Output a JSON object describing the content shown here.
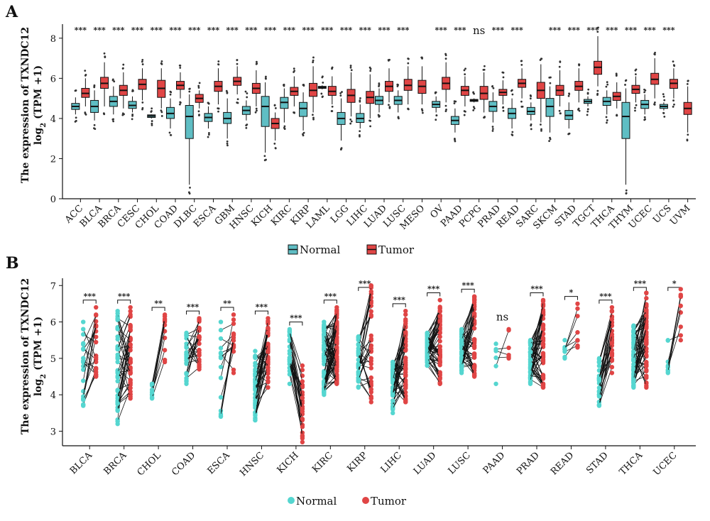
{
  "colors": {
    "normal_box": "#5fbec4",
    "normal_point": "#55d6d0",
    "tumor": "#e04545",
    "line": "#111111"
  },
  "panel_a": {
    "letter": "A",
    "ylabel_line1": "The expression of TXNDC12",
    "ylabel_line2": "log",
    "ylabel_sub": "2",
    "ylabel_rest": " (TPM +1)",
    "legend": {
      "normal": "Normal",
      "tumor": "Tumor"
    },
    "chart_data": {
      "type": "box",
      "ylim": [
        0,
        8.7
      ],
      "yticks": [
        0,
        2,
        4,
        6,
        8
      ],
      "series": [
        "Normal",
        "Tumor"
      ],
      "categories": [
        {
          "name": "ACC",
          "sig": "***",
          "normal": {
            "q1": 4.45,
            "med": 4.6,
            "q3": 4.75,
            "lo": 4.2,
            "hi": 5.05
          },
          "tumor": {
            "q1": 5.05,
            "med": 5.25,
            "q3": 5.5,
            "lo": 4.6,
            "hi": 6.0
          }
        },
        {
          "name": "BLCA",
          "sig": "***",
          "normal": {
            "q1": 4.3,
            "med": 4.6,
            "q3": 4.9,
            "lo": 3.9,
            "hi": 5.4
          },
          "tumor": {
            "q1": 5.5,
            "med": 5.75,
            "q3": 6.05,
            "lo": 4.6,
            "hi": 6.8
          }
        },
        {
          "name": "BRCA",
          "sig": "***",
          "normal": {
            "q1": 4.6,
            "med": 4.85,
            "q3": 5.1,
            "lo": 4.2,
            "hi": 5.6
          },
          "tumor": {
            "q1": 5.15,
            "med": 5.4,
            "q3": 5.65,
            "lo": 4.5,
            "hi": 6.3
          }
        },
        {
          "name": "CESC",
          "sig": "***",
          "normal": {
            "q1": 4.5,
            "med": 4.65,
            "q3": 4.85,
            "lo": 4.3,
            "hi": 5.1
          },
          "tumor": {
            "q1": 5.45,
            "med": 5.7,
            "q3": 5.95,
            "lo": 4.9,
            "hi": 6.5
          }
        },
        {
          "name": "CHOL",
          "sig": "***",
          "normal": {
            "q1": 4.05,
            "med": 4.12,
            "q3": 4.18,
            "lo": 4.0,
            "hi": 4.2
          },
          "tumor": {
            "q1": 5.05,
            "med": 5.5,
            "q3": 5.9,
            "lo": 4.5,
            "hi": 6.5
          }
        },
        {
          "name": "COAD",
          "sig": "***",
          "normal": {
            "q1": 4.0,
            "med": 4.25,
            "q3": 4.55,
            "lo": 3.5,
            "hi": 5.0
          },
          "tumor": {
            "q1": 5.45,
            "med": 5.65,
            "q3": 5.85,
            "lo": 5.0,
            "hi": 6.3
          }
        },
        {
          "name": "DLBC",
          "sig": "***",
          "normal": {
            "q1": 3.0,
            "med": 4.1,
            "q3": 4.65,
            "lo": 0.7,
            "hi": 5.2
          },
          "tumor": {
            "q1": 4.8,
            "med": 5.0,
            "q3": 5.2,
            "lo": 4.5,
            "hi": 5.4
          }
        },
        {
          "name": "ESCA",
          "sig": "***",
          "normal": {
            "q1": 3.85,
            "med": 4.05,
            "q3": 4.25,
            "lo": 3.5,
            "hi": 4.6
          },
          "tumor": {
            "q1": 5.35,
            "med": 5.6,
            "q3": 5.85,
            "lo": 4.7,
            "hi": 6.5
          }
        },
        {
          "name": "GBM",
          "sig": "***",
          "normal": {
            "q1": 3.75,
            "med": 4.0,
            "q3": 4.3,
            "lo": 3.0,
            "hi": 5.0
          },
          "tumor": {
            "q1": 5.65,
            "med": 5.85,
            "q3": 6.05,
            "lo": 5.2,
            "hi": 6.6
          }
        },
        {
          "name": "HNSC",
          "sig": "***",
          "normal": {
            "q1": 4.2,
            "med": 4.4,
            "q3": 4.6,
            "lo": 3.9,
            "hi": 4.9
          },
          "tumor": {
            "q1": 5.25,
            "med": 5.5,
            "q3": 5.75,
            "lo": 4.6,
            "hi": 6.4
          }
        },
        {
          "name": "KICH",
          "sig": "***",
          "normal": {
            "q1": 3.6,
            "med": 4.6,
            "q3": 5.1,
            "lo": 2.3,
            "hi": 5.8
          },
          "tumor": {
            "q1": 3.5,
            "med": 3.75,
            "q3": 4.0,
            "lo": 2.9,
            "hi": 4.3
          }
        },
        {
          "name": "KIRC",
          "sig": "***",
          "normal": {
            "q1": 4.5,
            "med": 4.8,
            "q3": 5.05,
            "lo": 3.8,
            "hi": 5.5
          },
          "tumor": {
            "q1": 5.15,
            "med": 5.35,
            "q3": 5.55,
            "lo": 4.6,
            "hi": 6.1
          }
        },
        {
          "name": "KIRP",
          "sig": "***",
          "normal": {
            "q1": 4.1,
            "med": 4.5,
            "q3": 4.8,
            "lo": 3.4,
            "hi": 5.3
          },
          "tumor": {
            "q1": 5.1,
            "med": 5.4,
            "q3": 5.75,
            "lo": 4.3,
            "hi": 6.6
          }
        },
        {
          "name": "LAML",
          "sig": "***",
          "normal": {
            "q1": 5.5,
            "med": 5.55,
            "q3": 5.6,
            "lo": 5.45,
            "hi": 5.65
          },
          "tumor": {
            "q1": 5.15,
            "med": 5.35,
            "q3": 5.6,
            "lo": 4.7,
            "hi": 6.1
          }
        },
        {
          "name": "LGG",
          "sig": "***",
          "normal": {
            "q1": 3.7,
            "med": 4.0,
            "q3": 4.3,
            "lo": 2.9,
            "hi": 5.0
          },
          "tumor": {
            "q1": 4.8,
            "med": 5.15,
            "q3": 5.45,
            "lo": 4.1,
            "hi": 6.3
          }
        },
        {
          "name": "LIHC",
          "sig": "***",
          "normal": {
            "q1": 3.8,
            "med": 4.0,
            "q3": 4.25,
            "lo": 3.5,
            "hi": 4.7
          },
          "tumor": {
            "q1": 4.75,
            "med": 5.05,
            "q3": 5.35,
            "lo": 4.0,
            "hi": 6.2
          }
        },
        {
          "name": "LUAD",
          "sig": "***",
          "normal": {
            "q1": 4.7,
            "med": 4.9,
            "q3": 5.1,
            "lo": 4.3,
            "hi": 5.5
          },
          "tumor": {
            "q1": 5.35,
            "med": 5.6,
            "q3": 5.85,
            "lo": 4.8,
            "hi": 6.5
          }
        },
        {
          "name": "LUSC",
          "sig": "***",
          "normal": {
            "q1": 4.7,
            "med": 4.9,
            "q3": 5.1,
            "lo": 4.3,
            "hi": 5.4
          },
          "tumor": {
            "q1": 5.4,
            "med": 5.65,
            "q3": 5.95,
            "lo": 4.7,
            "hi": 6.6
          }
        },
        {
          "name": "MESO",
          "sig": "",
          "normal": null,
          "tumor": {
            "q1": 5.25,
            "med": 5.6,
            "q3": 5.9,
            "lo": 4.7,
            "hi": 6.6
          }
        },
        {
          "name": "OV",
          "sig": "***",
          "normal": {
            "q1": 4.55,
            "med": 4.7,
            "q3": 4.85,
            "lo": 4.3,
            "hi": 5.1
          },
          "tumor": {
            "q1": 5.45,
            "med": 5.75,
            "q3": 6.05,
            "lo": 4.8,
            "hi": 6.8
          }
        },
        {
          "name": "PAAD",
          "sig": "***",
          "normal": {
            "q1": 3.7,
            "med": 3.9,
            "q3": 4.1,
            "lo": 3.3,
            "hi": 4.5
          },
          "tumor": {
            "q1": 5.15,
            "med": 5.4,
            "q3": 5.6,
            "lo": 4.6,
            "hi": 6.1
          }
        },
        {
          "name": "PCPG",
          "sig": "ns",
          "normal": {
            "q1": 4.85,
            "med": 4.9,
            "q3": 4.95,
            "lo": 4.8,
            "hi": 5.0
          },
          "tumor": {
            "q1": 4.95,
            "med": 5.25,
            "q3": 5.6,
            "lo": 4.3,
            "hi": 6.3
          }
        },
        {
          "name": "PRAD",
          "sig": "***",
          "normal": {
            "q1": 4.35,
            "med": 4.6,
            "q3": 4.85,
            "lo": 3.8,
            "hi": 5.3
          },
          "tumor": {
            "q1": 5.15,
            "med": 5.3,
            "q3": 5.45,
            "lo": 4.7,
            "hi": 5.9
          }
        },
        {
          "name": "READ",
          "sig": "***",
          "normal": {
            "q1": 4.0,
            "med": 4.25,
            "q3": 4.5,
            "lo": 3.5,
            "hi": 5.0
          },
          "tumor": {
            "q1": 5.55,
            "med": 5.75,
            "q3": 5.95,
            "lo": 5.0,
            "hi": 6.5
          }
        },
        {
          "name": "SARC",
          "sig": "",
          "normal": {
            "q1": 4.2,
            "med": 4.35,
            "q3": 4.55,
            "lo": 3.9,
            "hi": 4.8
          },
          "tumor": {
            "q1": 5.0,
            "med": 5.4,
            "q3": 5.8,
            "lo": 3.8,
            "hi": 6.7
          }
        },
        {
          "name": "SKCM",
          "sig": "***",
          "normal": {
            "q1": 4.1,
            "med": 4.6,
            "q3": 5.0,
            "lo": 3.3,
            "hi": 5.6
          },
          "tumor": {
            "q1": 5.15,
            "med": 5.4,
            "q3": 5.65,
            "lo": 4.6,
            "hi": 6.4
          }
        },
        {
          "name": "STAD",
          "sig": "***",
          "normal": {
            "q1": 3.95,
            "med": 4.15,
            "q3": 4.4,
            "lo": 3.5,
            "hi": 4.8
          },
          "tumor": {
            "q1": 5.4,
            "med": 5.6,
            "q3": 5.85,
            "lo": 4.8,
            "hi": 6.5
          }
        },
        {
          "name": "TGCT",
          "sig": "***",
          "normal": {
            "q1": 4.75,
            "med": 4.85,
            "q3": 4.95,
            "lo": 4.6,
            "hi": 5.1
          },
          "tumor": {
            "q1": 6.2,
            "med": 6.55,
            "q3": 6.85,
            "lo": 5.6,
            "hi": 8.1
          }
        },
        {
          "name": "THCA",
          "sig": "***",
          "normal": {
            "q1": 4.65,
            "med": 4.85,
            "q3": 5.05,
            "lo": 4.2,
            "hi": 5.4
          },
          "tumor": {
            "q1": 4.9,
            "med": 5.1,
            "q3": 5.3,
            "lo": 4.5,
            "hi": 5.8
          }
        },
        {
          "name": "THYM",
          "sig": "***",
          "normal": {
            "q1": 3.0,
            "med": 4.1,
            "q3": 4.8,
            "lo": 0.7,
            "hi": 5.5
          },
          "tumor": {
            "q1": 5.25,
            "med": 5.45,
            "q3": 5.65,
            "lo": 4.8,
            "hi": 6.1
          }
        },
        {
          "name": "UCEC",
          "sig": "***",
          "normal": {
            "q1": 4.5,
            "med": 4.7,
            "q3": 4.9,
            "lo": 4.2,
            "hi": 5.2
          },
          "tumor": {
            "q1": 5.7,
            "med": 5.95,
            "q3": 6.25,
            "lo": 5.0,
            "hi": 7.0
          }
        },
        {
          "name": "UCS",
          "sig": "***",
          "normal": {
            "q1": 4.5,
            "med": 4.6,
            "q3": 4.7,
            "lo": 4.4,
            "hi": 4.8
          },
          "tumor": {
            "q1": 5.5,
            "med": 5.75,
            "q3": 5.95,
            "lo": 5.0,
            "hi": 6.5
          }
        },
        {
          "name": "UVM",
          "sig": "",
          "normal": null,
          "tumor": {
            "q1": 4.2,
            "med": 4.5,
            "q3": 4.8,
            "lo": 3.3,
            "hi": 5.6
          }
        }
      ]
    }
  },
  "panel_b": {
    "letter": "B",
    "ylabel_line1": "The expression of TXNDC12",
    "ylabel_line2": "log",
    "ylabel_sub": "2",
    "ylabel_rest": " (TPM +1)",
    "legend": {
      "normal": "Normal",
      "tumor": "Tumor"
    },
    "chart_data": {
      "type": "paired-dot",
      "ylim": [
        2.6,
        7.2
      ],
      "yticks": [
        3,
        4,
        5,
        6,
        7
      ],
      "series": [
        "Normal",
        "Tumor"
      ],
      "categories": [
        {
          "name": "BLCA",
          "sig": "***",
          "n": 19,
          "normal": [
            3.7,
            6.0
          ],
          "tumor": [
            4.5,
            6.4
          ]
        },
        {
          "name": "BRCA",
          "sig": "***",
          "n": 40,
          "normal": [
            3.2,
            6.3
          ],
          "tumor": [
            3.9,
            6.4
          ]
        },
        {
          "name": "CHOL",
          "sig": "**",
          "n": 9,
          "normal": [
            3.9,
            4.3
          ],
          "tumor": [
            4.9,
            6.2
          ]
        },
        {
          "name": "COAD",
          "sig": "***",
          "n": 25,
          "normal": [
            4.3,
            5.7
          ],
          "tumor": [
            4.7,
            6.1
          ]
        },
        {
          "name": "ESCA",
          "sig": "**",
          "n": 13,
          "normal": [
            3.4,
            6.0
          ],
          "tumor": [
            4.6,
            6.2
          ]
        },
        {
          "name": "HNSC",
          "sig": "***",
          "n": 43,
          "normal": [
            3.3,
            5.2
          ],
          "tumor": [
            4.2,
            6.1
          ]
        },
        {
          "name": "KICH",
          "sig": "***",
          "n": 25,
          "normal": [
            4.3,
            5.8
          ],
          "tumor": [
            2.7,
            4.8
          ]
        },
        {
          "name": "KIRC",
          "sig": "***",
          "n": 72,
          "normal": [
            4.0,
            6.0
          ],
          "tumor": [
            4.3,
            6.4
          ]
        },
        {
          "name": "KIRP",
          "sig": "***",
          "n": 32,
          "normal": [
            4.2,
            5.6
          ],
          "tumor": [
            3.8,
            7.0
          ]
        },
        {
          "name": "LIHC",
          "sig": "***",
          "n": 50,
          "normal": [
            3.5,
            4.9
          ],
          "tumor": [
            3.8,
            6.3
          ]
        },
        {
          "name": "LUAD",
          "sig": "***",
          "n": 58,
          "normal": [
            4.8,
            5.7
          ],
          "tumor": [
            4.3,
            6.6
          ]
        },
        {
          "name": "LUSC",
          "sig": "***",
          "n": 49,
          "normal": [
            4.6,
            5.8
          ],
          "tumor": [
            4.5,
            6.7
          ]
        },
        {
          "name": "PAAD",
          "sig": "ns",
          "n": 4,
          "normal": [
            4.3,
            5.4
          ],
          "tumor": [
            5.0,
            5.8
          ]
        },
        {
          "name": "PRAD",
          "sig": "***",
          "n": 52,
          "normal": [
            4.3,
            5.5
          ],
          "tumor": [
            4.2,
            6.6
          ]
        },
        {
          "name": "READ",
          "sig": "*",
          "n": 6,
          "normal": [
            5.0,
            5.5
          ],
          "tumor": [
            5.3,
            6.5
          ]
        },
        {
          "name": "STAD",
          "sig": "***",
          "n": 27,
          "normal": [
            3.7,
            5.0
          ],
          "tumor": [
            4.6,
            6.4
          ]
        },
        {
          "name": "THCA",
          "sig": "***",
          "n": 59,
          "normal": [
            4.2,
            5.9
          ],
          "tumor": [
            4.2,
            6.8
          ]
        },
        {
          "name": "UCEC",
          "sig": "*",
          "n": 7,
          "normal": [
            4.6,
            5.5
          ],
          "tumor": [
            5.5,
            6.9
          ]
        }
      ]
    }
  }
}
